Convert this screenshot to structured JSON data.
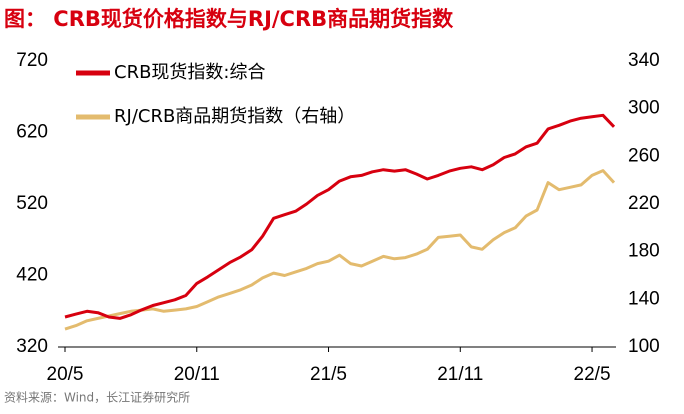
{
  "chart_data": {
    "type": "line",
    "title": "图：  CRB现货价格指数与RJ/CRB商品期货指数",
    "source": "资料来源：Wind，长江证券研究所",
    "categories": [
      "20/5",
      null,
      null,
      null,
      null,
      null,
      null,
      null,
      null,
      null,
      null,
      null,
      "20/11",
      null,
      null,
      null,
      null,
      null,
      null,
      null,
      null,
      null,
      null,
      null,
      "21/5",
      null,
      null,
      null,
      null,
      null,
      null,
      null,
      null,
      null,
      null,
      null,
      "21/11",
      null,
      null,
      null,
      null,
      null,
      null,
      null,
      null,
      null,
      null,
      null,
      "22/5",
      null,
      null
    ],
    "series": [
      {
        "name": "CRB现货指数:综合",
        "color": "#d7000f",
        "values": [
          362,
          366,
          370,
          368,
          362,
          360,
          365,
          372,
          378,
          382,
          386,
          392,
          409,
          418,
          428,
          438,
          446,
          456,
          475,
          500,
          505,
          510,
          520,
          532,
          540,
          552,
          558,
          560,
          565,
          568,
          566,
          568,
          562,
          555,
          560,
          566,
          570,
          572,
          568,
          575,
          585,
          590,
          600,
          605,
          625,
          630,
          636,
          640,
          642,
          644,
          628
        ]
      },
      {
        "name": "RJ/CRB商品期货指数（右轴）",
        "color": "#e3bb6e",
        "axis": "y2",
        "values": [
          115,
          118,
          122,
          124,
          126,
          128,
          130,
          131,
          132,
          130,
          131,
          132,
          134,
          138,
          142,
          145,
          148,
          152,
          158,
          162,
          160,
          163,
          166,
          170,
          172,
          177,
          170,
          168,
          172,
          176,
          174,
          175,
          178,
          182,
          192,
          193,
          194,
          184,
          182,
          190,
          196,
          200,
          210,
          215,
          238,
          232,
          234,
          236,
          244,
          248,
          238
        ]
      }
    ],
    "ylim": [
      320,
      720
    ],
    "yticks": [
      320,
      420,
      520,
      620,
      720
    ],
    "y2lim": [
      100,
      340
    ],
    "y2ticks": [
      100,
      140,
      180,
      220,
      260,
      300,
      340
    ],
    "grid": false,
    "legend": "upper-left"
  }
}
